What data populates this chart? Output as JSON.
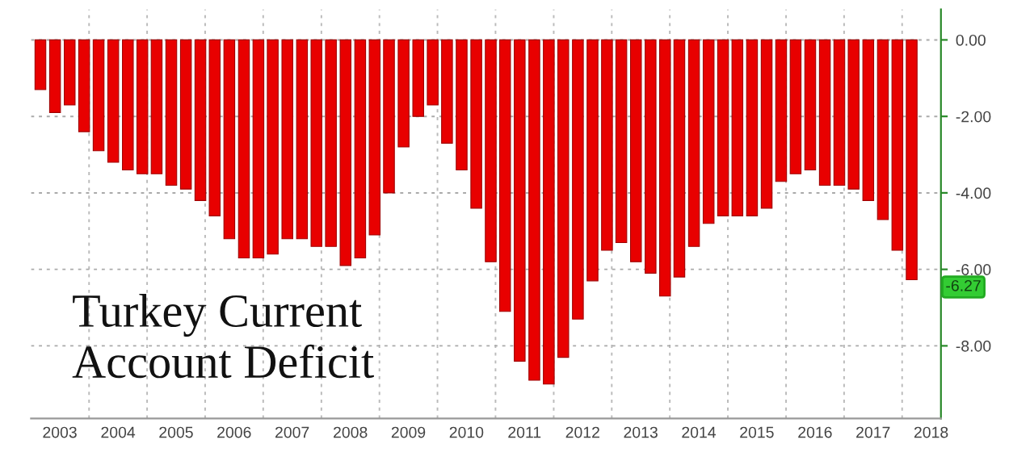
{
  "chart_data": {
    "type": "bar",
    "title": "Turkey Current\nAccount Deficit",
    "x": [
      "2003-03",
      "2003-06",
      "2003-09",
      "2003-12",
      "2004-03",
      "2004-06",
      "2004-09",
      "2004-12",
      "2005-03",
      "2005-06",
      "2005-09",
      "2005-12",
      "2006-03",
      "2006-06",
      "2006-09",
      "2006-12",
      "2007-03",
      "2007-06",
      "2007-09",
      "2007-12",
      "2008-03",
      "2008-06",
      "2008-09",
      "2008-12",
      "2009-03",
      "2009-06",
      "2009-09",
      "2009-12",
      "2010-03",
      "2010-06",
      "2010-09",
      "2010-12",
      "2011-03",
      "2011-06",
      "2011-09",
      "2011-12",
      "2012-03",
      "2012-06",
      "2012-09",
      "2012-12",
      "2013-03",
      "2013-06",
      "2013-09",
      "2013-12",
      "2014-03",
      "2014-06",
      "2014-09",
      "2014-12",
      "2015-03",
      "2015-06",
      "2015-09",
      "2015-12",
      "2016-03",
      "2016-06",
      "2016-09",
      "2016-12",
      "2017-03",
      "2017-06",
      "2017-09",
      "2017-12",
      "2018-03"
    ],
    "series": [
      {
        "color": "#e80000",
        "values": [
          -1.3,
          -1.9,
          -1.7,
          -2.4,
          -2.9,
          -3.2,
          -3.4,
          -3.5,
          -3.5,
          -3.8,
          -3.9,
          -4.2,
          -4.6,
          -5.2,
          -5.7,
          -5.7,
          -5.6,
          -5.2,
          -5.2,
          -5.4,
          -5.4,
          -5.9,
          -5.7,
          -5.1,
          -4.0,
          -2.8,
          -2.0,
          -1.7,
          -2.7,
          -3.4,
          -4.4,
          -5.8,
          -7.1,
          -8.4,
          -8.9,
          -9.0,
          -8.3,
          -7.3,
          -6.3,
          -5.5,
          -5.3,
          -5.8,
          -6.1,
          -6.7,
          -6.2,
          -5.4,
          -4.8,
          -4.6,
          -4.6,
          -4.6,
          -4.4,
          -3.7,
          -3.5,
          -3.4,
          -3.8,
          -3.8,
          -3.9,
          -4.2,
          -4.7,
          -5.5,
          -6.27
        ]
      }
    ],
    "xlim": [
      "2003-01",
      "2018-09"
    ],
    "xticks": [
      {
        "value": "2003-07",
        "label": "2003"
      },
      {
        "value": "2004-07",
        "label": "2004"
      },
      {
        "value": "2005-07",
        "label": "2005"
      },
      {
        "value": "2006-07",
        "label": "2006"
      },
      {
        "value": "2007-07",
        "label": "2007"
      },
      {
        "value": "2008-07",
        "label": "2008"
      },
      {
        "value": "2009-07",
        "label": "2009"
      },
      {
        "value": "2010-07",
        "label": "2010"
      },
      {
        "value": "2011-07",
        "label": "2011"
      },
      {
        "value": "2012-07",
        "label": "2012"
      },
      {
        "value": "2013-07",
        "label": "2013"
      },
      {
        "value": "2014-07",
        "label": "2014"
      },
      {
        "value": "2015-07",
        "label": "2015"
      },
      {
        "value": "2016-07",
        "label": "2016"
      },
      {
        "value": "2017-07",
        "label": "2017"
      },
      {
        "value": "2018-07",
        "label": "2018"
      }
    ],
    "ylim": [
      -9.9,
      0.8
    ],
    "yticks": [
      {
        "value": 0,
        "label": "0.00"
      },
      {
        "value": -2,
        "label": "-2.00"
      },
      {
        "value": -4,
        "label": "-4.00"
      },
      {
        "value": -6,
        "label": "-6.00"
      },
      {
        "value": -8,
        "label": "-8.00"
      }
    ],
    "grid": true,
    "annotations": [
      {
        "text": "-6.27",
        "x": "2018-03",
        "y": -6.27
      }
    ]
  }
}
